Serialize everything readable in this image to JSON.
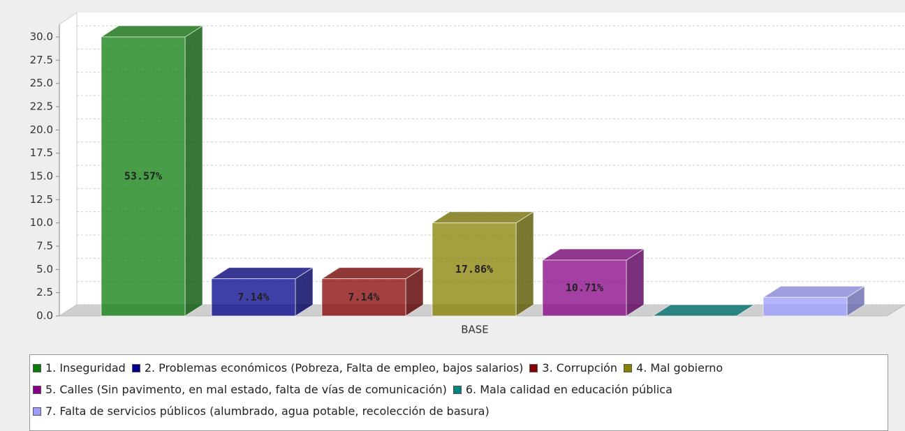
{
  "chart_data": {
    "type": "bar3d",
    "categories": [
      "BASE"
    ],
    "series": [
      {
        "name": "1. Inseguridad",
        "color": "#0b7d0b",
        "values": [
          30
        ]
      },
      {
        "name": "2. Problemas económicos (Pobreza, Falta de empleo, bajos salarios)",
        "color": "#00008c",
        "values": [
          4
        ]
      },
      {
        "name": "3. Corrupción",
        "color": "#850000",
        "values": [
          4
        ]
      },
      {
        "name": "4. Mal gobierno",
        "color": "#858000",
        "values": [
          10
        ]
      },
      {
        "name": "5. Calles (Sin pavimento, en mal estado, falta de vías de comunicación)",
        "color": "#850085",
        "values": [
          6
        ]
      },
      {
        "name": "6. Mala calidad en educación pública",
        "color": "#008080",
        "values": [
          0
        ]
      },
      {
        "name": "7. Falta de servicios públicos (alumbrado, agua potable, recolección de basura)",
        "color": "#9c9cff",
        "values": [
          2
        ]
      }
    ],
    "bar_labels": [
      "53.57%",
      "7.14%",
      "7.14%",
      "17.86%",
      "10.71%",
      null,
      null
    ],
    "ylim": [
      0,
      30
    ],
    "yticks": [
      {
        "value": 0,
        "label": "0.0"
      },
      {
        "value": 2.5,
        "label": "2.5"
      },
      {
        "value": 5,
        "label": "5.0"
      },
      {
        "value": 7.5,
        "label": "7.5"
      },
      {
        "value": 10,
        "label": "10.0"
      },
      {
        "value": 12.5,
        "label": "12.5"
      },
      {
        "value": 15,
        "label": "15.0"
      },
      {
        "value": 17.5,
        "label": "17.5"
      },
      {
        "value": 20,
        "label": "20.0"
      },
      {
        "value": 22.5,
        "label": "22.5"
      },
      {
        "value": 25,
        "label": "25.0"
      },
      {
        "value": 27.5,
        "label": "27.5"
      },
      {
        "value": 30,
        "label": "30.0"
      }
    ],
    "grid": true,
    "legend": "bottom"
  }
}
